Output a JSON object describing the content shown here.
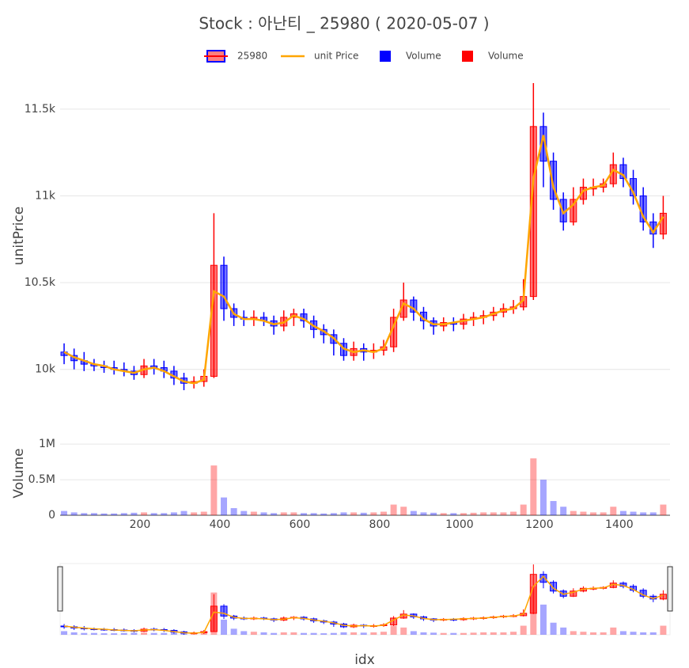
{
  "chart_data": [
    {
      "type": "candlestick",
      "title": "Stock :  아난티 _ 25980 ( 2020-05-07 )",
      "ylabel": "unitPrice",
      "ylim": [
        9880,
        11673
      ],
      "yticks": [
        {
          "value": 10000,
          "label": "10k"
        },
        {
          "value": 10500,
          "label": "10.5k"
        },
        {
          "value": 11000,
          "label": "11k"
        },
        {
          "value": 11500,
          "label": "11.5k"
        }
      ],
      "grid": true,
      "series": [
        {
          "name": "25980",
          "type": "candlestick",
          "increasing_color": "#ff0000",
          "decreasing_color": "#0000ff",
          "x": [
            10,
            35,
            60,
            85,
            110,
            135,
            160,
            185,
            210,
            235,
            260,
            285,
            310,
            335,
            360,
            385,
            410,
            435,
            460,
            485,
            510,
            535,
            560,
            585,
            610,
            635,
            660,
            685,
            710,
            735,
            760,
            785,
            810,
            835,
            860,
            885,
            910,
            935,
            960,
            985,
            1010,
            1035,
            1060,
            1085,
            1110,
            1135,
            1160,
            1185,
            1210,
            1235,
            1260,
            1285,
            1310,
            1335,
            1360,
            1385,
            1410,
            1435,
            1460,
            1485,
            1510
          ],
          "open": [
            10100,
            10080,
            10050,
            10030,
            10020,
            10010,
            10000,
            9990,
            9970,
            10020,
            10010,
            9990,
            9950,
            9920,
            9930,
            9960,
            10600,
            10350,
            10300,
            10290,
            10300,
            10280,
            10250,
            10300,
            10320,
            10280,
            10230,
            10200,
            10150,
            10080,
            10120,
            10100,
            10110,
            10130,
            10300,
            10400,
            10330,
            10280,
            10250,
            10270,
            10260,
            10290,
            10300,
            10310,
            10330,
            10350,
            10360,
            10420,
            11400,
            11200,
            10980,
            10850,
            10980,
            11040,
            11050,
            11070,
            11180,
            11100,
            11000,
            10850,
            10780
          ],
          "high": [
            10150,
            10120,
            10100,
            10060,
            10050,
            10050,
            10040,
            10020,
            10060,
            10060,
            10050,
            10020,
            9980,
            9960,
            10000,
            10900,
            10650,
            10380,
            10340,
            10340,
            10330,
            10310,
            10340,
            10350,
            10350,
            10310,
            10260,
            10230,
            10180,
            10160,
            10150,
            10150,
            10170,
            10350,
            10500,
            10420,
            10360,
            10300,
            10300,
            10300,
            10320,
            10330,
            10340,
            10360,
            10380,
            10400,
            10520,
            11650,
            11480,
            11250,
            11020,
            11050,
            11100,
            11100,
            11100,
            11250,
            11220,
            11150,
            11050,
            10900,
            11000
          ],
          "low": [
            10030,
            10000,
            9990,
            9990,
            9980,
            9970,
            9960,
            9940,
            9950,
            9970,
            9950,
            9910,
            9880,
            9890,
            9900,
            9950,
            10280,
            10250,
            10250,
            10250,
            10250,
            10200,
            10220,
            10250,
            10240,
            10180,
            10150,
            10080,
            10050,
            10050,
            10050,
            10060,
            10080,
            10100,
            10280,
            10280,
            10230,
            10200,
            10220,
            10220,
            10230,
            10250,
            10260,
            10280,
            10300,
            10320,
            10340,
            10400,
            11050,
            10920,
            10800,
            10830,
            10950,
            11000,
            11020,
            11050,
            11050,
            10950,
            10800,
            10700,
            10750
          ],
          "close": [
            10080,
            10050,
            10030,
            10020,
            10010,
            10000,
            9990,
            9970,
            10020,
            10010,
            9990,
            9950,
            9920,
            9930,
            9960,
            10600,
            10350,
            10300,
            10290,
            10300,
            10280,
            10250,
            10300,
            10320,
            10280,
            10230,
            10200,
            10150,
            10080,
            10120,
            10100,
            10110,
            10130,
            10300,
            10400,
            10330,
            10280,
            10250,
            10270,
            10260,
            10290,
            10300,
            10310,
            10330,
            10350,
            10360,
            10420,
            11400,
            11200,
            10980,
            10850,
            10980,
            11050,
            11050,
            11070,
            11180,
            11100,
            11000,
            10850,
            10780,
            10900
          ]
        },
        {
          "name": "unit Price",
          "type": "line",
          "color": "#ffa500",
          "values": [
            10100,
            10070,
            10050,
            10030,
            10020,
            10000,
            9990,
            9980,
            10000,
            10010,
            9990,
            9960,
            9930,
            9920,
            9940,
            10450,
            10420,
            10320,
            10290,
            10290,
            10280,
            10260,
            10270,
            10310,
            10290,
            10250,
            10220,
            10180,
            10120,
            10100,
            10110,
            10100,
            10120,
            10250,
            10380,
            10350,
            10290,
            10260,
            10260,
            10270,
            10280,
            10290,
            10300,
            10320,
            10340,
            10350,
            10400,
            11100,
            11350,
            11050,
            10900,
            10950,
            11030,
            11050,
            11060,
            11150,
            11120,
            11020,
            10880,
            10790,
            10880
          ]
        }
      ]
    },
    {
      "type": "bar",
      "ylabel": "Volume",
      "xlabel": "idx",
      "xlim": [
        0,
        1527
      ],
      "xticks": [
        200,
        400,
        600,
        800,
        1000,
        1200,
        1400
      ],
      "ylim": [
        0,
        1180000
      ],
      "yticks": [
        0,
        {
          "value": 500000,
          "label": "0.5M"
        },
        {
          "value": 1000000,
          "label": "1M"
        }
      ],
      "grid": true,
      "series": [
        {
          "name": "Volume",
          "color": "#0000ff",
          "values": [
            60000,
            40000,
            30000,
            30000,
            25000,
            25000,
            30000,
            35000,
            null,
            30000,
            30000,
            40000,
            60000,
            null,
            null,
            null,
            250000,
            100000,
            60000,
            null,
            40000,
            30000,
            null,
            null,
            30000,
            30000,
            25000,
            30000,
            40000,
            null,
            35000,
            null,
            null,
            null,
            null,
            60000,
            40000,
            35000,
            null,
            30000,
            null,
            null,
            null,
            null,
            null,
            null,
            null,
            null,
            500000,
            200000,
            120000,
            null,
            null,
            null,
            null,
            null,
            60000,
            50000,
            40000,
            40000,
            null
          ]
        },
        {
          "name": "Volume",
          "color": "#ff0000",
          "values": [
            null,
            null,
            null,
            null,
            null,
            null,
            null,
            null,
            40000,
            null,
            null,
            null,
            null,
            40000,
            50000,
            700000,
            null,
            null,
            null,
            50000,
            null,
            null,
            40000,
            40000,
            null,
            null,
            null,
            null,
            null,
            40000,
            null,
            40000,
            50000,
            150000,
            120000,
            null,
            null,
            null,
            30000,
            null,
            30000,
            35000,
            40000,
            40000,
            40000,
            50000,
            150000,
            800000,
            null,
            null,
            null,
            60000,
            50000,
            40000,
            40000,
            120000,
            null,
            null,
            null,
            null,
            150000
          ]
        }
      ]
    }
  ]
}
